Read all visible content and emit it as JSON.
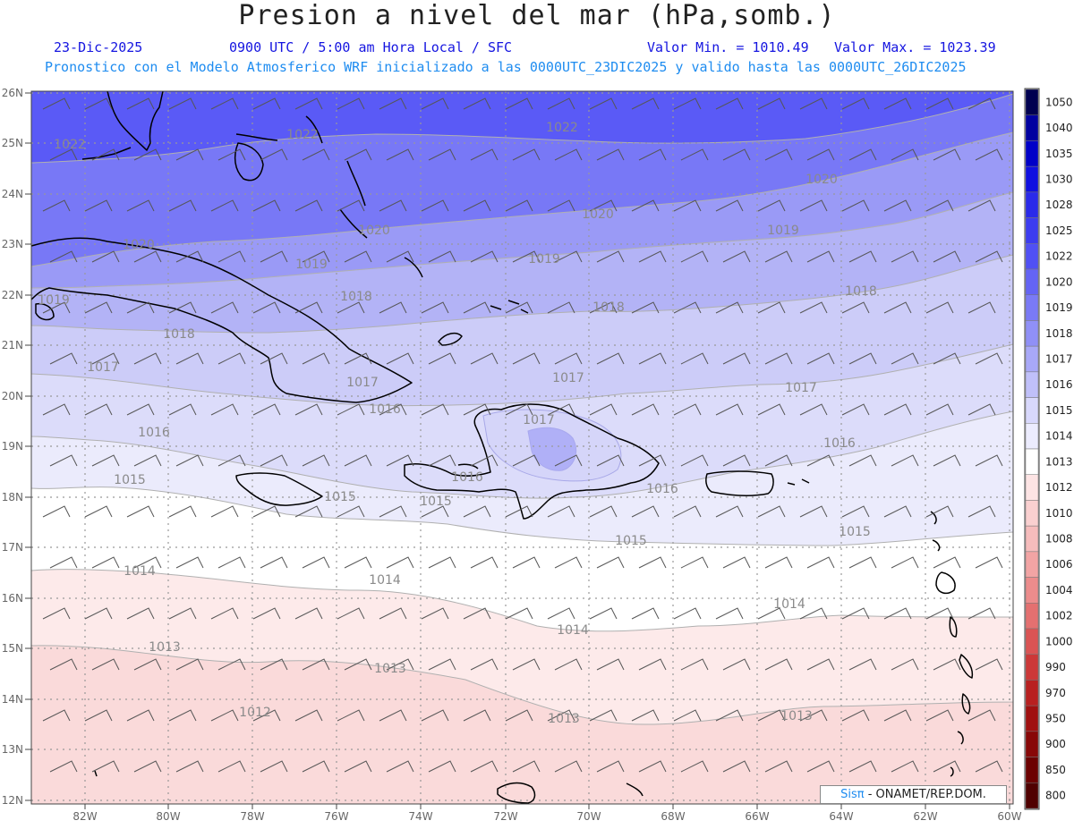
{
  "header": {
    "title": "Presion a nivel del mar (hPa,somb.)",
    "date": "23-Dic-2025",
    "time": "0900 UTC / 5:00 am Hora Local / SFC",
    "min_label": "Valor Min. = 1010.49",
    "max_label": "Valor Max. = 1023.39",
    "model_line": "Pronostico con el Modelo Atmosferico WRF inicializado a las 0000UTC_23DIC2025 y valido hasta las  0000UTC_26DIC2025"
  },
  "map": {
    "lat_labels": [
      "26N",
      "25N",
      "24N",
      "23N",
      "22N",
      "21N",
      "20N",
      "19N",
      "18N",
      "17N",
      "16N",
      "15N",
      "14N",
      "13N",
      "12N"
    ],
    "lon_labels": [
      "82W",
      "80W",
      "78W",
      "76W",
      "74W",
      "72W",
      "70W",
      "68W",
      "66W",
      "64W",
      "62W",
      "60W"
    ],
    "isobar_labels": [
      {
        "text": "1022"
      },
      {
        "text": "1022"
      },
      {
        "text": "1022"
      },
      {
        "text": "1020"
      },
      {
        "text": "1020"
      },
      {
        "text": "1020"
      },
      {
        "text": "1020"
      },
      {
        "text": "1019"
      },
      {
        "text": "1019"
      },
      {
        "text": "1019"
      },
      {
        "text": "1019"
      },
      {
        "text": "1018"
      },
      {
        "text": "1018"
      },
      {
        "text": "1018"
      },
      {
        "text": "1018"
      },
      {
        "text": "1017"
      },
      {
        "text": "1017"
      },
      {
        "text": "1017"
      },
      {
        "text": "1017"
      },
      {
        "text": "1017"
      },
      {
        "text": "1016"
      },
      {
        "text": "1016"
      },
      {
        "text": "1016"
      },
      {
        "text": "1016"
      },
      {
        "text": "1016"
      },
      {
        "text": "1015"
      },
      {
        "text": "1015"
      },
      {
        "text": "1015"
      },
      {
        "text": "1015"
      },
      {
        "text": "1015"
      },
      {
        "text": "1014"
      },
      {
        "text": "1014"
      },
      {
        "text": "1014"
      },
      {
        "text": "1014"
      },
      {
        "text": "1013"
      },
      {
        "text": "1013"
      },
      {
        "text": "1013"
      },
      {
        "text": "1013"
      },
      {
        "text": "1012"
      }
    ],
    "colors": {
      "band_1022": "#5a5af6",
      "band_1020": "#7878f6",
      "band_1019": "#9a9af6",
      "band_1018": "#b3b3f6",
      "band_1017": "#ccccf8",
      "band_1016": "#dcdcfa",
      "band_1015": "#ebebfc",
      "band_1014": "#ffffff",
      "band_1013": "#fdeaea",
      "band_1012": "#fadada"
    }
  },
  "colorbar": {
    "labels": [
      "1050",
      "1040",
      "1035",
      "1030",
      "1028",
      "1025",
      "1022",
      "1020",
      "1019",
      "1018",
      "1017",
      "1016",
      "1015",
      "1014",
      "1013",
      "1012",
      "1010",
      "1008",
      "1006",
      "1004",
      "1002",
      "1000",
      "990",
      "970",
      "950",
      "900",
      "850",
      "800"
    ],
    "colors": [
      "#000050",
      "#0000a0",
      "#0000c8",
      "#1010e0",
      "#2a2aea",
      "#3c3cf0",
      "#5050f5",
      "#6464f5",
      "#7a7af6",
      "#9090f7",
      "#a8a8f8",
      "#c0c0fa",
      "#d8d8fc",
      "#ececfe",
      "#ffffff",
      "#fde4e4",
      "#fad0d0",
      "#f6bcbc",
      "#f2a4a4",
      "#ec8c8c",
      "#e47070",
      "#da5454",
      "#cc3838",
      "#b82020",
      "#a01010",
      "#880808",
      "#6c0000",
      "#500000"
    ]
  },
  "credit": {
    "sis": "Sisπ",
    "rest": " - ONAMET/REP.DOM."
  }
}
